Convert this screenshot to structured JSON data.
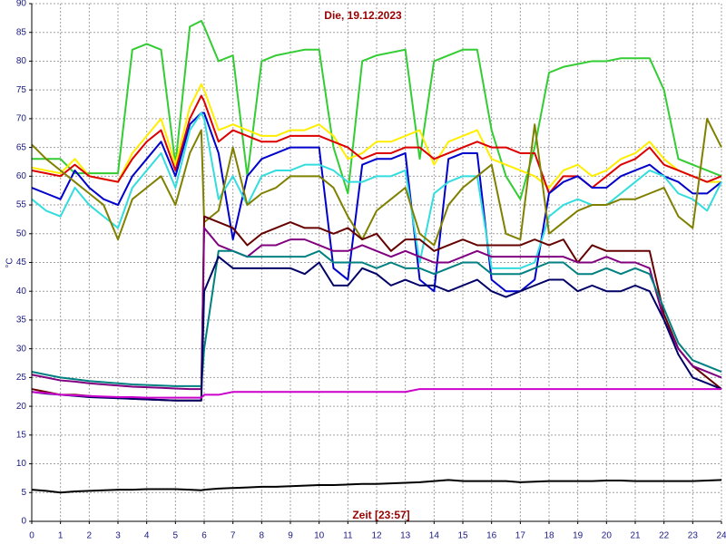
{
  "chart_data": {
    "type": "line",
    "title": "Die, 19.12.2023",
    "y_label": "°C",
    "x_label": "Zeit [23:57]",
    "grid": true,
    "xlim": [
      0,
      24
    ],
    "ylim": [
      0,
      90
    ],
    "xticks": [
      0,
      1,
      2,
      3,
      4,
      5,
      6,
      7,
      8,
      9,
      10,
      11,
      12,
      13,
      14,
      15,
      16,
      17,
      18,
      19,
      20,
      21,
      22,
      23,
      24
    ],
    "yticks": [
      0,
      5,
      10,
      15,
      20,
      25,
      30,
      35,
      40,
      45,
      50,
      55,
      60,
      65,
      70,
      75,
      80,
      85,
      90
    ],
    "x": [
      0,
      0.5,
      1,
      1.5,
      2,
      2.5,
      3,
      3.5,
      4,
      4.5,
      5,
      5.5,
      5.9,
      6,
      6.5,
      7,
      7.5,
      8,
      8.5,
      9,
      9.5,
      10,
      10.5,
      11,
      11.5,
      12,
      12.5,
      13,
      13.5,
      14,
      14.5,
      15,
      15.5,
      16,
      16.5,
      17,
      17.5,
      18,
      18.5,
      19,
      19.5,
      20,
      20.5,
      21,
      21.5,
      22,
      22.5,
      23,
      23.5,
      24
    ],
    "series": [
      {
        "color": "#33cc33",
        "values": [
          63,
          63,
          63,
          60.5,
          60.5,
          60.5,
          60.5,
          82,
          83,
          82,
          62,
          86,
          87,
          86,
          80,
          81,
          60,
          80,
          81,
          81.5,
          82,
          82,
          65,
          57,
          80,
          81,
          81.5,
          82,
          63,
          80,
          81,
          82,
          82,
          68,
          60,
          56,
          65,
          78,
          79,
          79.5,
          80,
          80,
          80.5,
          80.5,
          80.5,
          75,
          63,
          62,
          61,
          60
        ]
      },
      {
        "color": "#ffee00",
        "values": [
          61.5,
          61,
          60.5,
          63,
          60,
          59.5,
          59,
          64,
          67,
          70,
          62,
          72,
          76,
          75,
          68,
          69,
          68,
          67,
          67,
          68,
          68,
          69,
          67,
          63,
          64,
          66,
          66,
          67,
          68,
          62,
          66,
          67,
          68,
          63,
          62,
          61,
          60,
          58,
          61,
          62,
          60,
          61,
          63,
          64,
          66,
          63,
          61,
          60,
          59,
          59
        ]
      },
      {
        "color": "#dd0000",
        "values": [
          61,
          60.5,
          60,
          62,
          60,
          59.5,
          59,
          63,
          66,
          68,
          61,
          70,
          74,
          73,
          66,
          68,
          67,
          66,
          66,
          67,
          67,
          67,
          66,
          65,
          63,
          64,
          64,
          65,
          65,
          63,
          64,
          65,
          66,
          65,
          65,
          64,
          64,
          57,
          60,
          60,
          58,
          60,
          62,
          63,
          65,
          62,
          61,
          60,
          59,
          60
        ]
      },
      {
        "color": "#0000cc",
        "values": [
          58,
          57,
          56,
          61,
          58,
          56,
          55,
          60,
          63,
          66,
          60,
          69,
          71,
          71,
          64,
          49,
          60,
          63,
          64,
          65,
          65,
          65,
          44,
          42,
          62,
          63,
          63,
          64,
          42,
          40,
          63,
          64,
          64,
          42,
          40,
          40,
          42,
          57,
          59,
          60,
          58,
          58,
          60,
          61,
          62,
          60,
          59,
          57,
          57,
          59
        ]
      },
      {
        "color": "#33dddd",
        "values": [
          56,
          54,
          53,
          58,
          55,
          53,
          51,
          58,
          61,
          64,
          58,
          68,
          71,
          70,
          56,
          60,
          55,
          60,
          61,
          61,
          62,
          62,
          61,
          59,
          59,
          60,
          60,
          61,
          45,
          57,
          59,
          60,
          60,
          44,
          44,
          44,
          45,
          53,
          55,
          56,
          55,
          55,
          57,
          59,
          61,
          60,
          57,
          56,
          54,
          59
        ]
      },
      {
        "color": "#808000",
        "values": [
          65.5,
          63,
          61,
          59,
          57,
          55,
          49,
          56,
          58,
          60,
          55,
          64,
          68,
          52,
          54,
          65,
          55,
          57,
          58,
          60,
          60,
          60,
          58,
          53,
          49,
          54,
          56,
          58,
          50,
          48,
          55,
          58,
          60,
          62,
          50,
          49,
          69,
          50,
          52,
          54,
          55,
          55,
          56,
          56,
          57,
          58,
          53,
          51,
          70,
          65
        ]
      },
      {
        "color": "#660000",
        "values": [
          23,
          22.5,
          22,
          22,
          21.8,
          21.6,
          21.5,
          21.3,
          21.2,
          21.1,
          21,
          21,
          21,
          53,
          52,
          51,
          48,
          50,
          51,
          52,
          51,
          51,
          50,
          51,
          49,
          50,
          47,
          49,
          49,
          47,
          48,
          49,
          48,
          48,
          48,
          48,
          49,
          48,
          49,
          45,
          48,
          47,
          47,
          47,
          47,
          36,
          30,
          27,
          25,
          23
        ]
      },
      {
        "color": "#800080",
        "values": [
          25.5,
          25,
          24.5,
          24.3,
          24,
          23.8,
          23.6,
          23.4,
          23.3,
          23.2,
          23.1,
          23,
          23,
          51,
          48,
          47,
          46,
          48,
          48,
          49,
          49,
          48,
          47,
          47,
          48,
          47,
          46,
          47,
          46,
          45,
          45,
          46,
          47,
          46,
          46,
          46,
          46,
          46,
          46,
          45,
          45,
          46,
          45,
          45,
          44,
          35,
          30,
          27,
          26,
          25
        ]
      },
      {
        "color": "#008080",
        "values": [
          26,
          25.5,
          25,
          24.7,
          24.4,
          24.2,
          24,
          23.8,
          23.7,
          23.6,
          23.5,
          23.5,
          23.5,
          30,
          47,
          47,
          46,
          46,
          46,
          46,
          46,
          47,
          45,
          45,
          45,
          44,
          45,
          44,
          44,
          43,
          44,
          45,
          45,
          43,
          43,
          43,
          44,
          45,
          45,
          43,
          43,
          44,
          43,
          44,
          43,
          37,
          31,
          28,
          27,
          26
        ]
      },
      {
        "color": "#000066",
        "values": [
          22.5,
          22.2,
          22,
          21.8,
          21.6,
          21.5,
          21.4,
          21.3,
          21.2,
          21.1,
          21,
          21,
          21,
          40,
          46,
          44,
          44,
          44,
          44,
          44,
          43,
          45,
          41,
          41,
          44,
          43,
          41,
          42,
          41,
          41,
          40,
          41,
          42,
          40,
          39,
          40,
          41,
          42,
          42,
          40,
          41,
          40,
          40,
          41,
          40,
          35,
          29,
          25,
          24,
          23
        ]
      },
      {
        "color": "#cc00cc",
        "values": [
          22.5,
          22.3,
          22,
          21.9,
          21.8,
          21.7,
          21.6,
          21.6,
          21.5,
          21.5,
          21.5,
          21.5,
          21.5,
          22,
          22,
          22.5,
          22.5,
          22.5,
          22.5,
          22.5,
          22.5,
          22.5,
          22.5,
          22.5,
          22.5,
          22.5,
          22.5,
          22.5,
          23,
          23,
          23,
          23,
          23,
          23,
          23,
          23,
          23,
          23,
          23,
          23,
          23,
          23,
          23,
          23,
          23,
          23,
          23,
          23,
          23,
          23
        ]
      },
      {
        "color": "#000000",
        "values": [
          5.5,
          5.3,
          5,
          5.2,
          5.3,
          5.4,
          5.5,
          5.5,
          5.6,
          5.6,
          5.6,
          5.5,
          5.4,
          5.5,
          5.7,
          5.8,
          5.9,
          6,
          6,
          6.1,
          6.2,
          6.3,
          6.3,
          6.4,
          6.5,
          6.5,
          6.6,
          6.7,
          6.8,
          7,
          7.2,
          7,
          7,
          7,
          7,
          6.8,
          6.9,
          7,
          7,
          7,
          7,
          7.1,
          7.1,
          7,
          7,
          7,
          7,
          7,
          7.1,
          7.2
        ]
      }
    ]
  }
}
